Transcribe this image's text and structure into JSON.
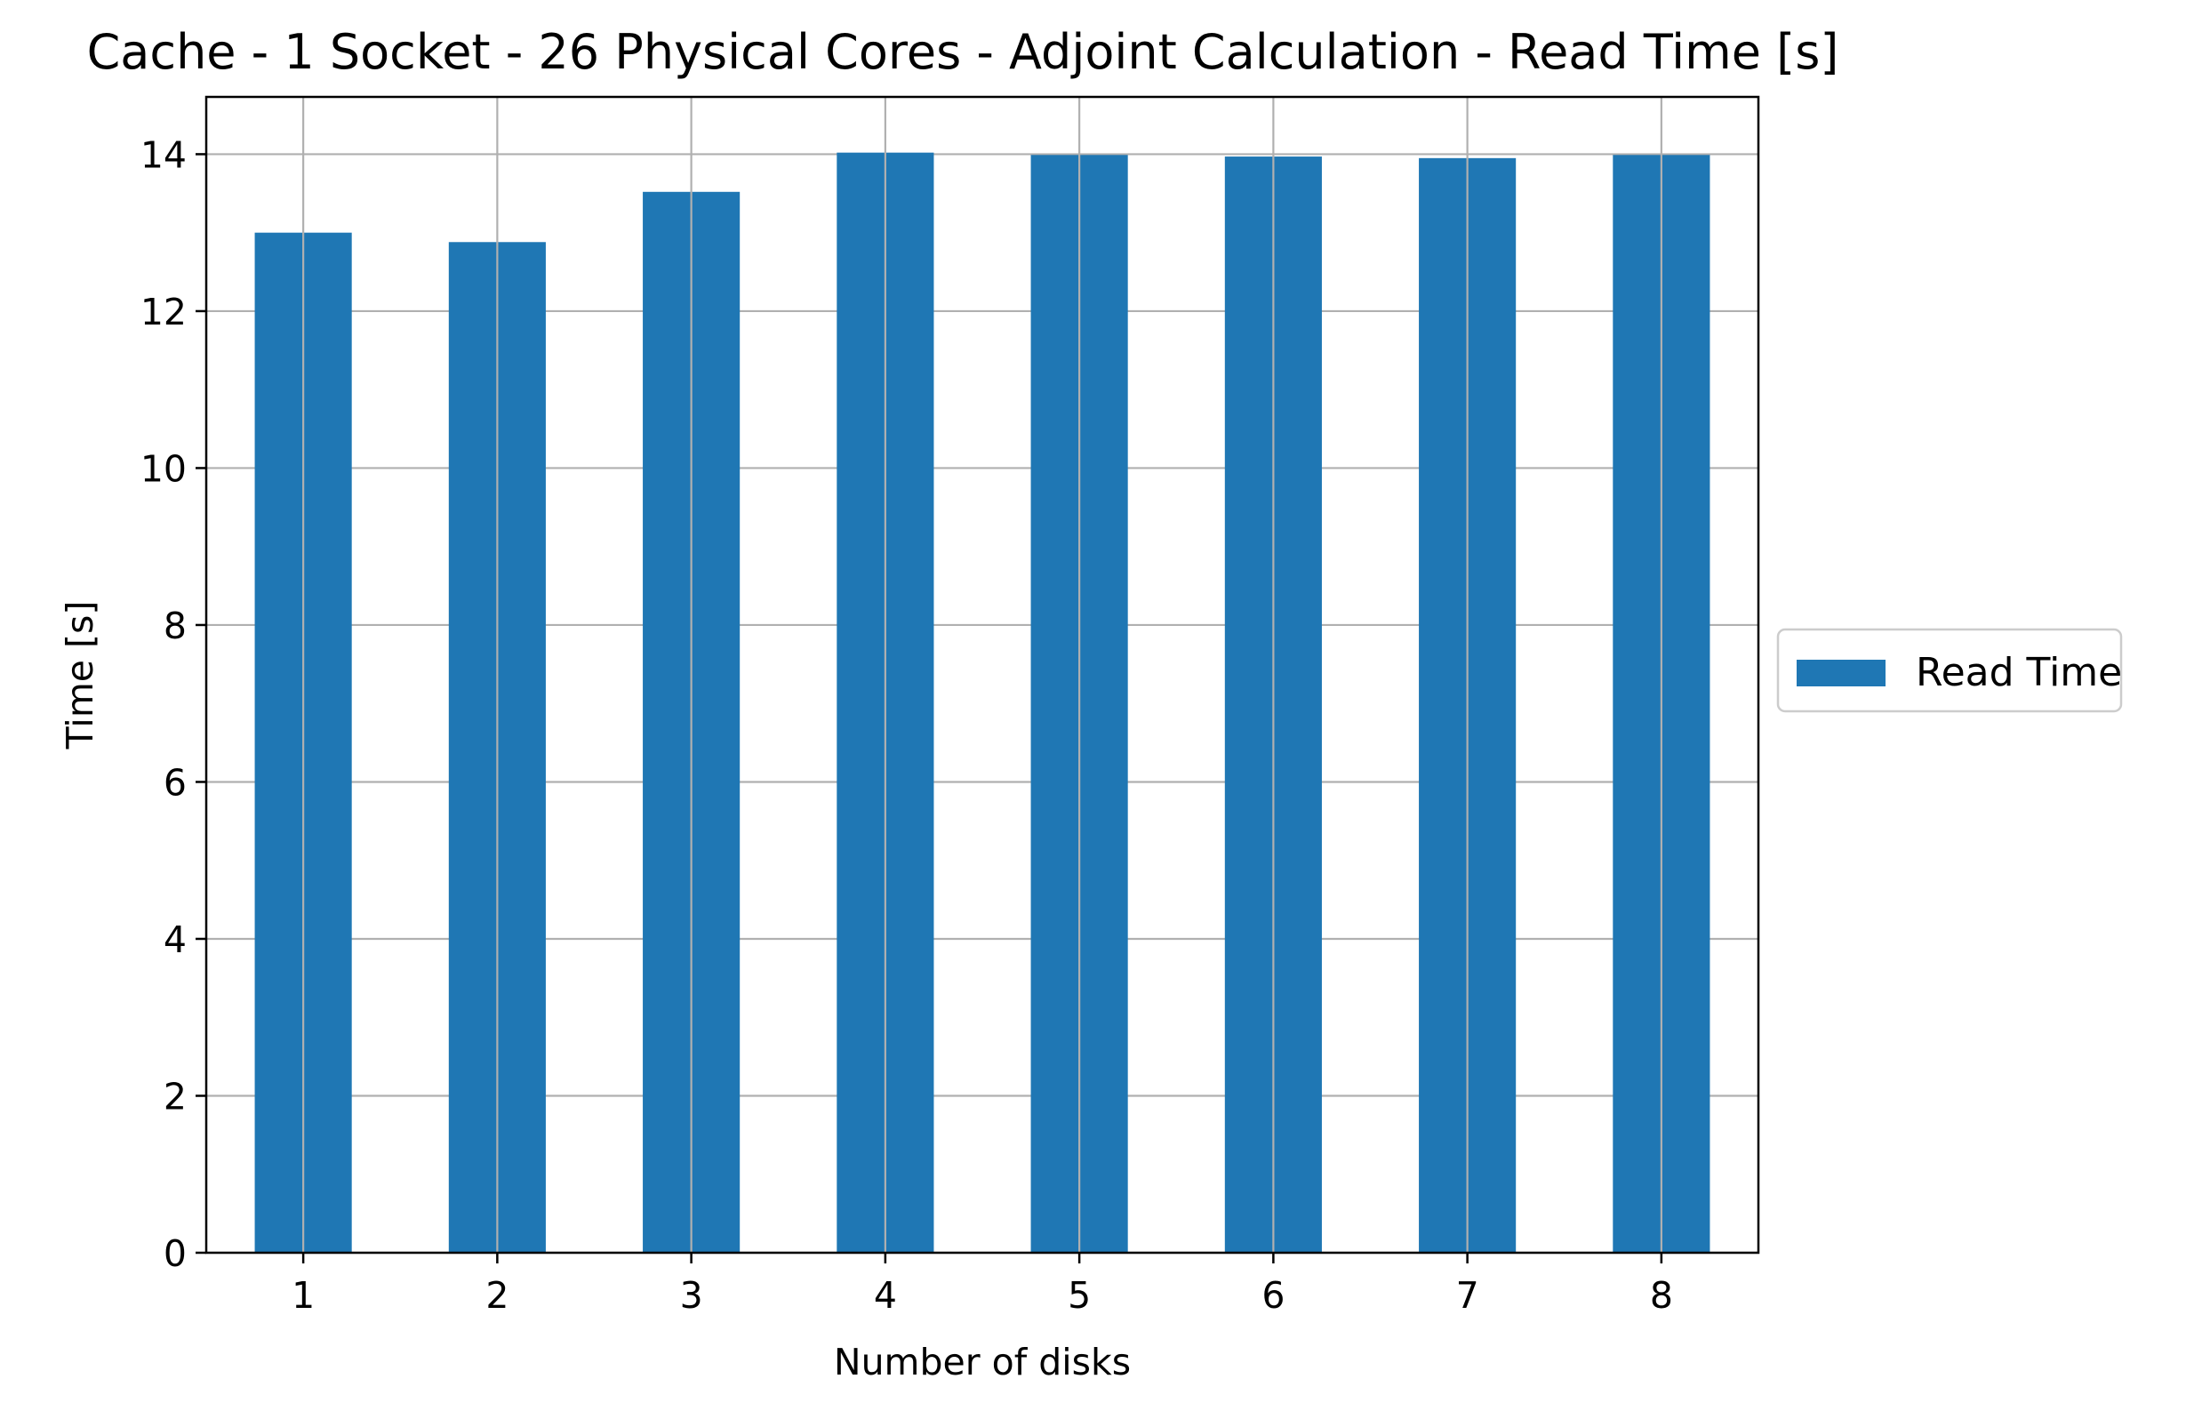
{
  "colors": {
    "bar": "#1f77b4",
    "grid": "#b0b0b0",
    "axis": "#000000",
    "legend_border": "#cccccc"
  },
  "chart_data": {
    "type": "bar",
    "title": "Cache - 1 Socket - 26 Physical Cores - Adjoint Calculation - Read Time [s]",
    "xlabel": "Number of disks",
    "ylabel": "Time [s]",
    "categories": [
      "1",
      "2",
      "3",
      "4",
      "5",
      "6",
      "7",
      "8"
    ],
    "series": [
      {
        "name": "Read Time",
        "values": [
          13.0,
          12.88,
          13.52,
          14.02,
          13.99,
          13.97,
          13.95,
          13.99
        ]
      }
    ],
    "ylim": [
      0,
      14.73
    ],
    "yticks": [
      0,
      2,
      4,
      6,
      8,
      10,
      12,
      14
    ],
    "grid": true,
    "legend": "center-right-outside"
  }
}
